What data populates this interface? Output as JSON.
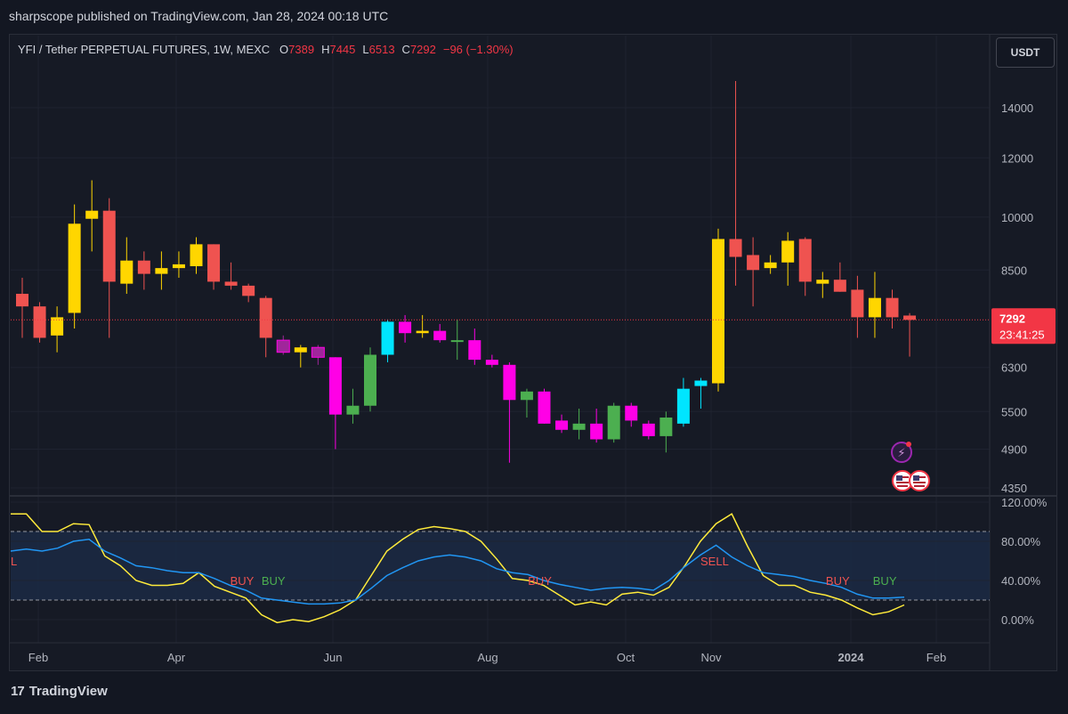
{
  "header": {
    "published": "sharpscope published on TradingView.com, Jan 28, 2024 00:18 UTC"
  },
  "symbol": {
    "title": "YFI / Tether PERPETUAL FUTURES, 1W, MEXC",
    "open_label": "O",
    "open": "7389",
    "high_label": "H",
    "high": "7445",
    "low_label": "L",
    "low": "6513",
    "close_label": "C",
    "close": "7292",
    "change": "−96 (−1.30%)"
  },
  "currency_button": "USDT",
  "price_badge": {
    "price": "7292",
    "countdown": "23:41:25"
  },
  "footer": {
    "brand": "TradingView",
    "logo": "17"
  },
  "colors": {
    "background": "#131722",
    "bear_red": "#ef5350",
    "bull_yellow": "#ffd600",
    "cyan": "#00e5ff",
    "magenta": "#ff00e6",
    "green": "#4caf50",
    "k_line": "#ffeb3b",
    "d_line": "#2196f3",
    "badge": "#f23645"
  },
  "chart_data": [
    {
      "type": "candlestick",
      "y_axis_ticks": [
        14000,
        12000,
        10000,
        8500,
        7292,
        6300,
        5500,
        4900,
        4350
      ],
      "y_axis_tick_labels": [
        "14000",
        "12000",
        "10000",
        "8500",
        "7292",
        "6300",
        "5500",
        "4900",
        "4350"
      ],
      "x_axis_labels": [
        "Feb",
        "Apr",
        "Jun",
        "Aug",
        "Oct",
        "Nov",
        "2024",
        "Feb"
      ],
      "candles": [
        {
          "o": 7900,
          "h": 8300,
          "l": 6900,
          "c": 7600,
          "color": "red"
        },
        {
          "o": 7600,
          "h": 7700,
          "l": 6800,
          "c": 6900,
          "color": "red"
        },
        {
          "o": 6950,
          "h": 7600,
          "l": 6600,
          "c": 7350,
          "color": "yellow"
        },
        {
          "o": 7450,
          "h": 10400,
          "l": 7100,
          "c": 9800,
          "color": "yellow"
        },
        {
          "o": 9950,
          "h": 11200,
          "l": 9000,
          "c": 10200,
          "color": "yellow"
        },
        {
          "o": 10200,
          "h": 10600,
          "l": 6900,
          "c": 8200,
          "color": "red"
        },
        {
          "o": 8150,
          "h": 9400,
          "l": 7900,
          "c": 8750,
          "color": "yellow"
        },
        {
          "o": 8750,
          "h": 9000,
          "l": 8000,
          "c": 8400,
          "color": "red"
        },
        {
          "o": 8400,
          "h": 9000,
          "l": 8000,
          "c": 8550,
          "color": "yellow"
        },
        {
          "o": 8550,
          "h": 9000,
          "l": 8300,
          "c": 8650,
          "color": "yellow"
        },
        {
          "o": 8600,
          "h": 9400,
          "l": 8400,
          "c": 9200,
          "color": "yellow"
        },
        {
          "o": 9200,
          "h": 9200,
          "l": 8000,
          "c": 8200,
          "color": "red"
        },
        {
          "o": 8200,
          "h": 8700,
          "l": 8000,
          "c": 8100,
          "color": "red"
        },
        {
          "o": 8100,
          "h": 8150,
          "l": 7700,
          "c": 7850,
          "color": "red"
        },
        {
          "o": 7800,
          "h": 7850,
          "l": 6500,
          "c": 6900,
          "color": "red"
        },
        {
          "o": 6850,
          "h": 6950,
          "l": 6550,
          "c": 6600,
          "color": "purple"
        },
        {
          "o": 6600,
          "h": 6750,
          "l": 6300,
          "c": 6700,
          "color": "yellow"
        },
        {
          "o": 6700,
          "h": 6750,
          "l": 6350,
          "c": 6500,
          "color": "purple"
        },
        {
          "o": 6500,
          "h": 6500,
          "l": 4900,
          "c": 5450,
          "color": "magenta"
        },
        {
          "o": 5450,
          "h": 5900,
          "l": 5300,
          "c": 5600,
          "color": "green"
        },
        {
          "o": 5600,
          "h": 6700,
          "l": 5500,
          "c": 6550,
          "color": "green"
        },
        {
          "o": 6550,
          "h": 7300,
          "l": 6400,
          "c": 7250,
          "color": "cyan"
        },
        {
          "o": 7250,
          "h": 7400,
          "l": 6800,
          "c": 7000,
          "color": "magenta"
        },
        {
          "o": 7050,
          "h": 7400,
          "l": 6900,
          "c": 7000,
          "color": "yellow"
        },
        {
          "o": 7050,
          "h": 7200,
          "l": 6800,
          "c": 6850,
          "color": "magenta"
        },
        {
          "o": 6850,
          "h": 7300,
          "l": 6450,
          "c": 6850,
          "color": "green"
        },
        {
          "o": 6850,
          "h": 7100,
          "l": 6350,
          "c": 6450,
          "color": "magenta"
        },
        {
          "o": 6450,
          "h": 6550,
          "l": 6300,
          "c": 6350,
          "color": "magenta"
        },
        {
          "o": 6350,
          "h": 6400,
          "l": 4700,
          "c": 5700,
          "color": "magenta"
        },
        {
          "o": 5700,
          "h": 5900,
          "l": 5400,
          "c": 5850,
          "color": "green"
        },
        {
          "o": 5850,
          "h": 5900,
          "l": 5300,
          "c": 5300,
          "color": "magenta"
        },
        {
          "o": 5350,
          "h": 5450,
          "l": 5150,
          "c": 5200,
          "color": "magenta"
        },
        {
          "o": 5200,
          "h": 5550,
          "l": 5050,
          "c": 5300,
          "color": "green"
        },
        {
          "o": 5300,
          "h": 5550,
          "l": 5000,
          "c": 5050,
          "color": "magenta"
        },
        {
          "o": 5050,
          "h": 5650,
          "l": 5000,
          "c": 5600,
          "color": "green"
        },
        {
          "o": 5600,
          "h": 5650,
          "l": 5250,
          "c": 5350,
          "color": "magenta"
        },
        {
          "o": 5300,
          "h": 5350,
          "l": 5050,
          "c": 5100,
          "color": "magenta"
        },
        {
          "o": 5100,
          "h": 5500,
          "l": 4850,
          "c": 5400,
          "color": "green"
        },
        {
          "o": 5300,
          "h": 6100,
          "l": 5250,
          "c": 5900,
          "color": "cyan"
        },
        {
          "o": 5950,
          "h": 6100,
          "l": 5550,
          "c": 6050,
          "color": "cyan"
        },
        {
          "o": 6000,
          "h": 9650,
          "l": 5850,
          "c": 9350,
          "color": "yellow"
        },
        {
          "o": 9350,
          "h": 15200,
          "l": 8100,
          "c": 8850,
          "color": "red"
        },
        {
          "o": 8900,
          "h": 9400,
          "l": 7600,
          "c": 8500,
          "color": "red"
        },
        {
          "o": 8550,
          "h": 8900,
          "l": 8400,
          "c": 8700,
          "color": "yellow"
        },
        {
          "o": 8700,
          "h": 9550,
          "l": 8100,
          "c": 9300,
          "color": "yellow"
        },
        {
          "o": 9350,
          "h": 9400,
          "l": 7850,
          "c": 8200,
          "color": "red"
        },
        {
          "o": 8150,
          "h": 8450,
          "l": 7800,
          "c": 8250,
          "color": "yellow"
        },
        {
          "o": 8250,
          "h": 8700,
          "l": 7950,
          "c": 7950,
          "color": "red"
        },
        {
          "o": 8000,
          "h": 8350,
          "l": 6900,
          "c": 7350,
          "color": "red"
        },
        {
          "o": 7350,
          "h": 8450,
          "l": 6900,
          "c": 7800,
          "color": "yellow"
        },
        {
          "o": 7800,
          "h": 8000,
          "l": 7100,
          "c": 7350,
          "color": "red"
        },
        {
          "o": 7389,
          "h": 7445,
          "l": 6513,
          "c": 7292,
          "color": "red"
        }
      ]
    },
    {
      "type": "line",
      "y_axis_ticks": [
        120,
        80,
        40,
        0
      ],
      "y_axis_tick_labels": [
        "120.00%",
        "80.00%",
        "40.00%",
        "0.00%"
      ],
      "band": [
        20,
        90
      ],
      "series": [
        {
          "color": "yellow",
          "values": [
            108,
            108,
            90,
            90,
            98,
            97,
            65,
            55,
            40,
            35,
            35,
            37,
            48,
            34,
            28,
            22,
            5,
            -3,
            0,
            -2,
            3,
            10,
            20,
            45,
            70,
            82,
            92,
            95,
            93,
            90,
            80,
            62,
            42,
            40,
            35,
            25,
            15,
            18,
            15,
            26,
            28,
            25,
            33,
            55,
            80,
            98,
            108,
            75,
            45,
            35,
            35,
            28,
            25,
            20,
            12,
            5,
            8,
            15
          ]
        },
        {
          "color": "blue",
          "values": [
            70,
            72,
            70,
            73,
            80,
            82,
            70,
            63,
            55,
            53,
            50,
            48,
            48,
            42,
            35,
            30,
            22,
            20,
            18,
            16,
            16,
            17,
            20,
            32,
            45,
            53,
            60,
            64,
            66,
            64,
            60,
            52,
            48,
            46,
            40,
            36,
            33,
            30,
            32,
            33,
            32,
            30,
            40,
            54,
            66,
            76,
            64,
            55,
            48,
            46,
            44,
            40,
            37,
            33,
            26,
            22,
            22,
            23
          ]
        }
      ],
      "annotations": [
        {
          "text": "L",
          "color": "red",
          "index": 0,
          "value": 60
        },
        {
          "text": "BUY",
          "color": "red",
          "index": 14,
          "value": 40
        },
        {
          "text": "BUY",
          "color": "green",
          "index": 16,
          "value": 40
        },
        {
          "text": "BUY",
          "color": "red",
          "index": 33,
          "value": 40
        },
        {
          "text": "SELL",
          "color": "red",
          "index": 44,
          "value": 60
        },
        {
          "text": "BUY",
          "color": "red",
          "index": 52,
          "value": 40
        },
        {
          "text": "BUY",
          "color": "green",
          "index": 55,
          "value": 40
        }
      ]
    }
  ]
}
